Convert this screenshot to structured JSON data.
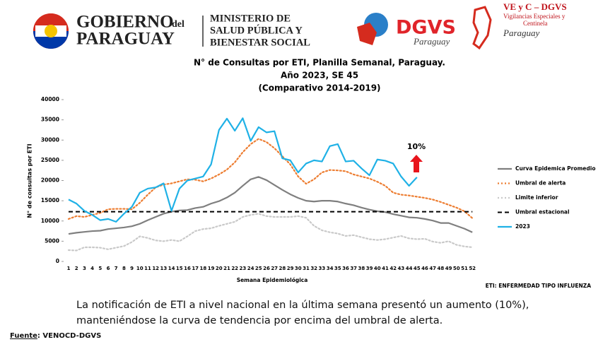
{
  "header": {
    "gov_line1": "GOBIERNO",
    "gov_del": "del",
    "gov_line2": "PARAGUAY",
    "ministry": [
      "MINISTERIO DE",
      "SALUD PÚBLICA Y",
      "BIENESTAR SOCIAL"
    ],
    "dgvs": "DGVS",
    "dgvs_sub": "Paraguay",
    "vec_title": "VE y C – DGVS",
    "vec_lines": [
      "Vigilancias Especiales y",
      "Centinela"
    ],
    "vec_sub": "Paraguay"
  },
  "chart_data": {
    "type": "line",
    "title": "N° de Consultas por ETI, Planilla Semanal, Paraguay.",
    "subtitle": [
      "Año 2023, SE 45",
      "(Comparativo 2014-2019)"
    ],
    "x_label": "Semana Epidemiológica",
    "y_label": "N° de consultas por ETI",
    "categories": [
      1,
      2,
      3,
      4,
      5,
      6,
      7,
      8,
      9,
      10,
      11,
      12,
      13,
      14,
      15,
      16,
      17,
      18,
      19,
      20,
      21,
      22,
      23,
      24,
      25,
      26,
      27,
      28,
      29,
      30,
      31,
      32,
      33,
      34,
      35,
      36,
      37,
      38,
      39,
      40,
      41,
      42,
      43,
      44,
      45,
      46,
      47,
      48,
      49,
      50,
      51,
      52
    ],
    "ylim": [
      0,
      40000
    ],
    "yticks": [
      0,
      5000,
      10000,
      15000,
      20000,
      25000,
      30000,
      35000,
      40000
    ],
    "legend": "right",
    "series": [
      {
        "name": "Curva Epidemica Promedio",
        "color": "#7f7f7f",
        "dash": "solid",
        "values": [
          6800,
          7100,
          7300,
          7500,
          7600,
          8000,
          8200,
          8400,
          8700,
          9300,
          10200,
          11000,
          11800,
          12300,
          12600,
          12700,
          13200,
          13500,
          14300,
          14900,
          15800,
          17000,
          18700,
          20300,
          20900,
          20100,
          18900,
          17700,
          16600,
          15700,
          15000,
          14800,
          15000,
          15000,
          14800,
          14300,
          13900,
          13300,
          12800,
          12400,
          12200,
          11700,
          11300,
          10900,
          10800,
          10500,
          10100,
          9500,
          9500,
          8800,
          8100,
          7200
        ]
      },
      {
        "name": "Umbral de alerta",
        "color": "#ed7d31",
        "dash": "dotted",
        "values": [
          10500,
          11200,
          11000,
          11500,
          12000,
          12900,
          13000,
          13000,
          12900,
          14500,
          16500,
          18300,
          19000,
          19300,
          19800,
          20300,
          20200,
          19800,
          20500,
          21500,
          22700,
          24500,
          27000,
          29000,
          30300,
          29500,
          28000,
          26000,
          24000,
          21000,
          19200,
          20300,
          22000,
          22600,
          22500,
          22300,
          21500,
          21000,
          20500,
          19700,
          18700,
          17000,
          16500,
          16300,
          16000,
          15700,
          15300,
          14700,
          14000,
          13300,
          12400,
          10700
        ]
      },
      {
        "name": "Limite inferior",
        "color": "#c9c9c9",
        "dash": "dotted",
        "values": [
          2800,
          2700,
          3500,
          3500,
          3400,
          3000,
          3400,
          3800,
          4800,
          6200,
          5800,
          5200,
          5000,
          5300,
          5000,
          6200,
          7500,
          8000,
          8200,
          8800,
          9300,
          9800,
          11000,
          11500,
          11800,
          11200,
          11000,
          11000,
          11000,
          11200,
          10800,
          8800,
          7700,
          7200,
          6900,
          6300,
          6500,
          6000,
          5500,
          5300,
          5500,
          5900,
          6300,
          5700,
          5500,
          5600,
          4900,
          4600,
          5000,
          4100,
          3700,
          3500
        ]
      },
      {
        "name": "Umbral estacional",
        "color": "#000000",
        "dash": "dashed",
        "values": [
          12300,
          12300,
          12300,
          12300,
          12300,
          12300,
          12300,
          12300,
          12300,
          12300,
          12300,
          12300,
          12300,
          12300,
          12300,
          12300,
          12300,
          12300,
          12300,
          12300,
          12300,
          12300,
          12300,
          12300,
          12300,
          12300,
          12300,
          12300,
          12300,
          12300,
          12300,
          12300,
          12300,
          12300,
          12300,
          12300,
          12300,
          12300,
          12300,
          12300,
          12300,
          12300,
          12300,
          12300,
          12300,
          12300,
          12300,
          12300,
          12300,
          12300,
          12300,
          12300
        ]
      },
      {
        "name": "2023",
        "color": "#1fb1e6",
        "dash": "solid",
        "values": [
          15300,
          14300,
          12500,
          11500,
          10200,
          10500,
          9800,
          11800,
          13500,
          17000,
          18000,
          18300,
          19300,
          12500,
          18000,
          20000,
          20500,
          21000,
          24000,
          32500,
          35300,
          32300,
          35400,
          29800,
          33200,
          31900,
          32200,
          25500,
          25000,
          22000,
          24200,
          25000,
          24700,
          28500,
          29000,
          24700,
          24900,
          23000,
          21300,
          25200,
          24900,
          24200,
          21000,
          18700,
          20800,
          null,
          null,
          null,
          null,
          null,
          null,
          null
        ]
      }
    ],
    "annotation": "10%",
    "footnote": "ETI: ENFERMEDAD TIPO INFLUENZA"
  },
  "text": "La notificación de ETI a nivel nacional en la última semana presentó un aumento (10%), manteniéndose la curva de tendencia  por encima del umbral de alerta.",
  "source": {
    "label": "Fuente",
    "value": ": VENOCD-DGVS"
  }
}
